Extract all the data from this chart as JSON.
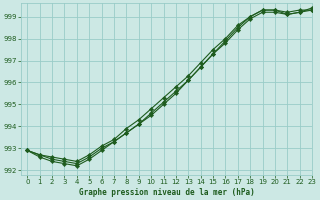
{
  "title": "Graphe pression niveau de la mer (hPa)",
  "background_color": "#cce8e4",
  "grid_color": "#99ccc8",
  "line_color": "#1e5c1e",
  "xlim": [
    -0.5,
    23
  ],
  "ylim": [
    991.8,
    999.6
  ],
  "yticks": [
    992,
    993,
    994,
    995,
    996,
    997,
    998,
    999
  ],
  "xticks": [
    0,
    1,
    2,
    3,
    4,
    5,
    6,
    7,
    8,
    9,
    10,
    11,
    12,
    13,
    14,
    15,
    16,
    17,
    18,
    19,
    20,
    21,
    22,
    23
  ],
  "series1": {
    "x": [
      0,
      1,
      2,
      3,
      4,
      5,
      6,
      7,
      8,
      9,
      10,
      11,
      12,
      13,
      14,
      15,
      16,
      17,
      18,
      19,
      20,
      21,
      22,
      23
    ],
    "y": [
      992.9,
      992.7,
      992.6,
      992.5,
      992.4,
      992.7,
      993.1,
      993.4,
      993.9,
      994.3,
      994.8,
      995.3,
      995.8,
      996.3,
      996.9,
      997.5,
      998.0,
      998.6,
      999.0,
      999.3,
      999.3,
      999.2,
      999.3,
      999.3
    ]
  },
  "series2": {
    "x": [
      0,
      1,
      2,
      3,
      4,
      5,
      6,
      7,
      8,
      9,
      10,
      11,
      12,
      13,
      14,
      15,
      16,
      17,
      18,
      19,
      20,
      21,
      22,
      23
    ],
    "y": [
      992.9,
      992.7,
      992.5,
      992.4,
      992.3,
      992.6,
      993.0,
      993.3,
      993.7,
      994.1,
      994.6,
      995.1,
      995.6,
      996.1,
      996.7,
      997.3,
      997.8,
      998.4,
      998.9,
      999.2,
      999.2,
      999.1,
      999.2,
      999.3
    ]
  },
  "series3": {
    "x": [
      0,
      1,
      2,
      3,
      4,
      5,
      6,
      7,
      8,
      9,
      10,
      11,
      12,
      13,
      14,
      15,
      16,
      17,
      18,
      19,
      20,
      21,
      22,
      23
    ],
    "y": [
      992.9,
      992.6,
      992.4,
      992.3,
      992.2,
      992.5,
      992.9,
      993.3,
      993.7,
      994.1,
      994.5,
      995.0,
      995.5,
      996.1,
      996.7,
      997.3,
      997.9,
      998.5,
      999.0,
      999.3,
      999.3,
      999.1,
      999.2,
      999.4
    ]
  }
}
